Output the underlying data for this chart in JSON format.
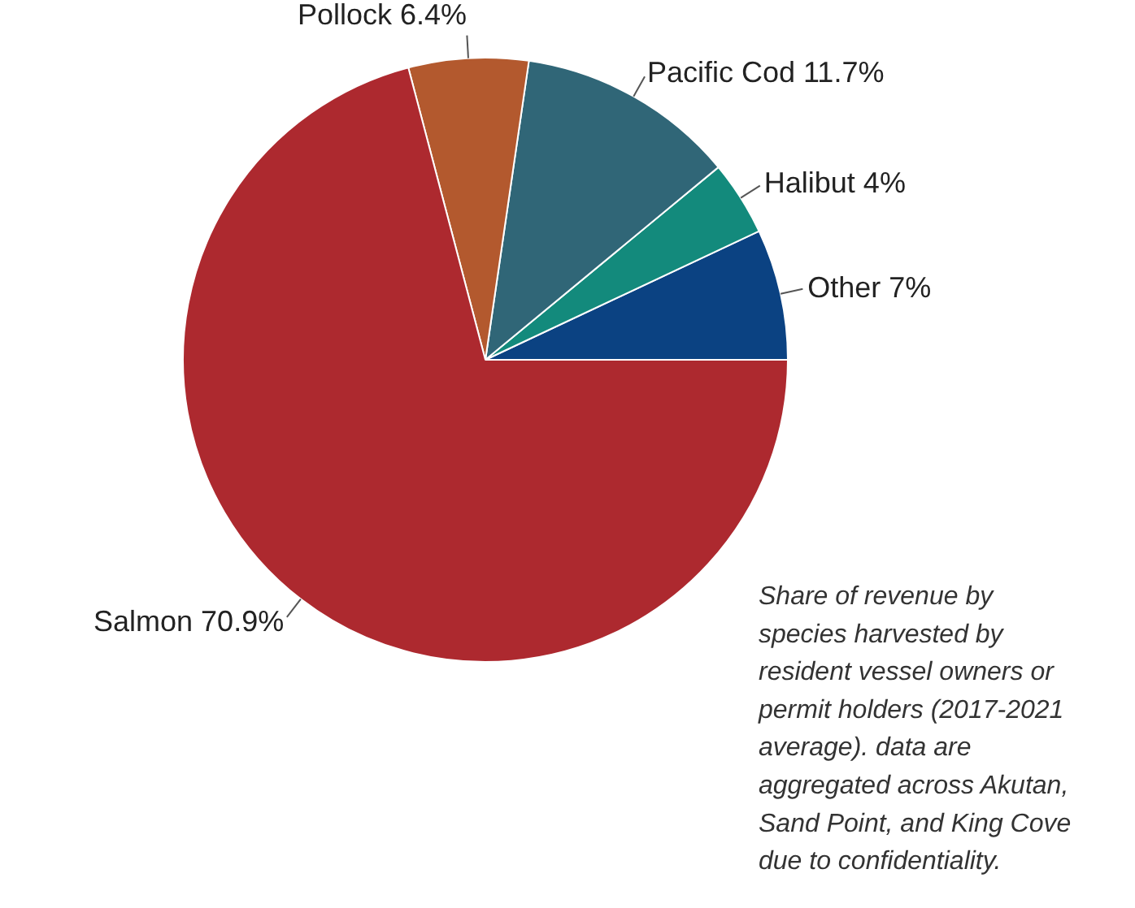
{
  "chart_data": {
    "type": "pie",
    "categories": [
      "Other",
      "Halibut",
      "Pacific Cod",
      "Pollock",
      "Salmon"
    ],
    "values": [
      7,
      4,
      11.7,
      6.4,
      70.9
    ],
    "value_labels": [
      "7%",
      "4%",
      "11.7%",
      "6.4%",
      "70.9%"
    ],
    "colors": [
      "#0b4282",
      "#138a7c",
      "#306677",
      "#b3592e",
      "#ad292f"
    ],
    "legend": false,
    "annotations": [
      "Share of revenue by species harvested by resident vessel owners or permit holders (2017-2021 average). data are aggregated across Akutan, Sand Point, and King Cove due to confidentiality."
    ]
  }
}
